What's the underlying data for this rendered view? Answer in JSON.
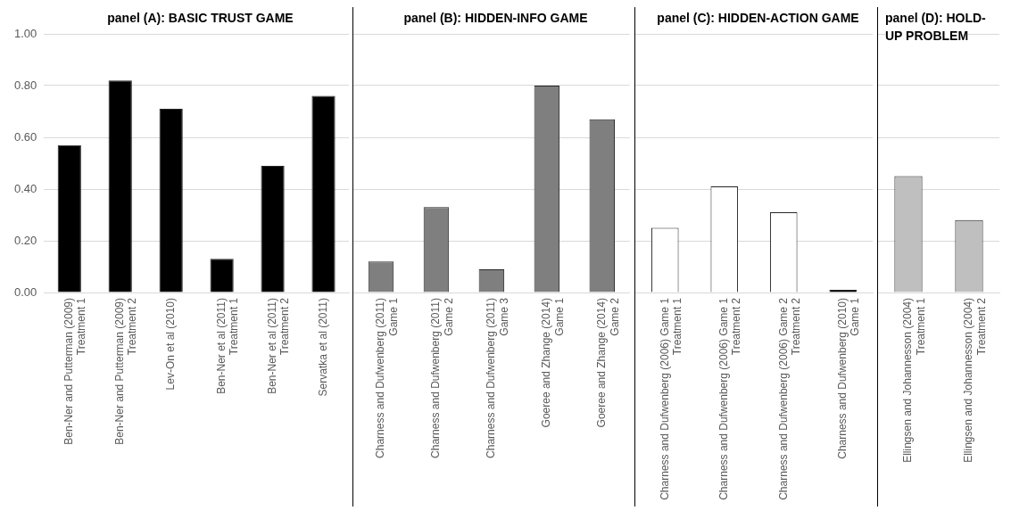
{
  "chart_data": [
    {
      "type": "bar",
      "title": "panel (A): BASIC TRUST GAME",
      "categories": [
        "Ben-Ner and Putterman (2009) Treatment 1",
        "Ben-Ner and Putterman (2009) Treatment 2",
        "Lev-On et al (2010)",
        "Ben-Ner et al (2011) Treatment 1",
        "Ben-Ner et al (2011) Treatment 2",
        "Servatka et al (2011)"
      ],
      "values": [
        0.57,
        0.82,
        0.71,
        0.13,
        0.49,
        0.76
      ],
      "color": "#000000",
      "ylim": [
        0,
        1
      ],
      "yticks": [
        {
          "value": 0,
          "label": "0.00"
        },
        {
          "value": 0.2,
          "label": "0.20"
        },
        {
          "value": 0.4,
          "label": "0.40"
        },
        {
          "value": 0.6,
          "label": "0.60"
        },
        {
          "value": 0.8,
          "label": "0.80"
        },
        {
          "value": 1,
          "label": "1.00"
        }
      ],
      "grid": "y"
    },
    {
      "type": "bar",
      "title": "panel (B): HIDDEN-INFO GAME",
      "categories": [
        "Charness and Dufwenberg (2011) Game 1",
        "Charness and Dufwenberg (2011) Game 2",
        "Charness and Dufwenberg (2011) Game 3",
        "Goeree and Zhange (2014) Game 1",
        "Goeree and Zhange (2014) Game 2"
      ],
      "values": [
        0.12,
        0.33,
        0.09,
        0.8,
        0.67
      ],
      "color": "#7f7f7f",
      "ylim": [
        0,
        1
      ],
      "yticks": [
        0,
        0.2,
        0.4,
        0.6,
        0.8,
        1
      ],
      "grid": "y",
      "tick_labels": "x"
    },
    {
      "type": "bar",
      "title": "panel (C): HIDDEN-ACTION GAME",
      "categories": [
        "Charness and Dufwenberg (2006) Game 1 Treatment 1",
        "Charness and Dufwenberg (2006) Game 1 Treatment 2",
        "Charness and Dufwenberg (2006) Game 2 Treatment 2",
        "Charness and Dufwenberg (2010) Game 1"
      ],
      "values": [
        0.25,
        0.41,
        0.31,
        0.01
      ],
      "colors": [
        "#ffffff",
        "#ffffff",
        "#ffffff",
        "#000000"
      ],
      "ylim": [
        0,
        1
      ],
      "yticks": [
        0,
        0.2,
        0.4,
        0.6,
        0.8,
        1
      ],
      "grid": "y",
      "tick_labels": "x"
    },
    {
      "type": "bar",
      "title": "panel (D): HOLD-UP PROBLEM",
      "categories": [
        "Ellingsen and Johannesson (2004) Treatment 1",
        "Ellingsen and Johannesson (2004) Treatment 2"
      ],
      "values": [
        0.45,
        0.28
      ],
      "color": "#bfbfbf",
      "ylim": [
        0,
        1
      ],
      "yticks": [
        0,
        0.2,
        0.4,
        0.6,
        0.8,
        1
      ],
      "grid": "y",
      "tick_labels": "x"
    }
  ]
}
